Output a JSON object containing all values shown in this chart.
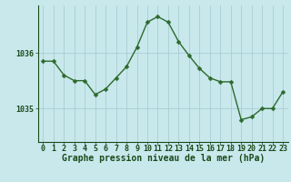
{
  "x": [
    0,
    1,
    2,
    3,
    4,
    5,
    6,
    7,
    8,
    9,
    10,
    11,
    12,
    13,
    14,
    15,
    16,
    17,
    18,
    19,
    20,
    21,
    22,
    23
  ],
  "y": [
    1035.85,
    1035.85,
    1035.6,
    1035.5,
    1035.5,
    1035.25,
    1035.35,
    1035.55,
    1035.75,
    1036.1,
    1036.55,
    1036.65,
    1036.55,
    1036.2,
    1035.95,
    1035.72,
    1035.55,
    1035.48,
    1035.48,
    1034.8,
    1034.85,
    1035.0,
    1035.0,
    1035.3
  ],
  "line_color": "#2d6a2d",
  "marker": "D",
  "markersize": 2.5,
  "linewidth": 1.0,
  "bg_color": "#c8e8ec",
  "plot_bg_color": "#c8e8ec",
  "grid_color": "#aacdd4",
  "xlabel": "Graphe pression niveau de la mer (hPa)",
  "xlabel_color": "#1a4a1a",
  "tick_color": "#1a4a1a",
  "ytick_labels": [
    "1035",
    "1036"
  ],
  "ytick_values": [
    1035.0,
    1036.0
  ],
  "ylim": [
    1034.4,
    1036.85
  ],
  "xlim": [
    -0.5,
    23.5
  ],
  "xlabel_fontsize": 7.0,
  "tick_fontsize": 6.0
}
